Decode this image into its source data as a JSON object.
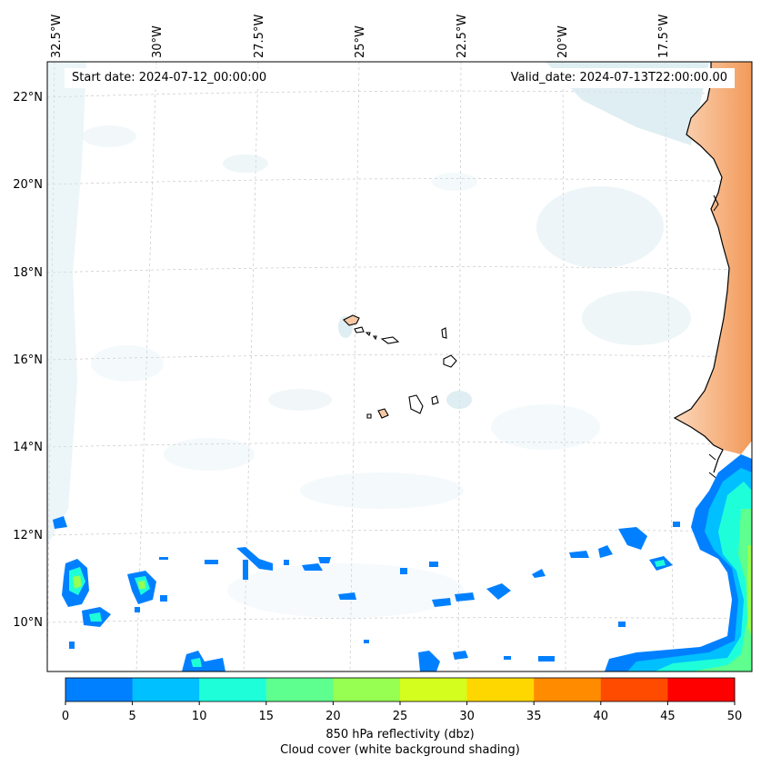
{
  "map": {
    "start_date": "Start date: 2024-07-12_00:00:00",
    "valid_date": "Valid_date: 2024-07-13T22:00:00.00",
    "lon_labels": [
      "32.5°W",
      "30°W",
      "27.5°W",
      "25°W",
      "22.5°W",
      "20°W",
      "17.5°W"
    ],
    "lat_labels": [
      "22°N",
      "20°N",
      "18°N",
      "16°N",
      "14°N",
      "12°N",
      "10°N"
    ],
    "colors": {
      "land": "#f6b889",
      "cloud": "#d4e8ee",
      "coast": "#000000",
      "grid": "#c8c8c8"
    }
  },
  "colorbar": {
    "ticks": [
      "0",
      "5",
      "10",
      "15",
      "20",
      "25",
      "30",
      "35",
      "40",
      "45",
      "50"
    ],
    "colors": [
      "#0080ff",
      "#00c0ff",
      "#1effd9",
      "#5eff8e",
      "#96ff52",
      "#d4ff1e",
      "#ffd700",
      "#ff8c00",
      "#ff4b00",
      "#ff0000"
    ],
    "label_line1": "850 hPa reflectivity (dbz)",
    "label_line2": "Cloud cover (white background shading)"
  }
}
